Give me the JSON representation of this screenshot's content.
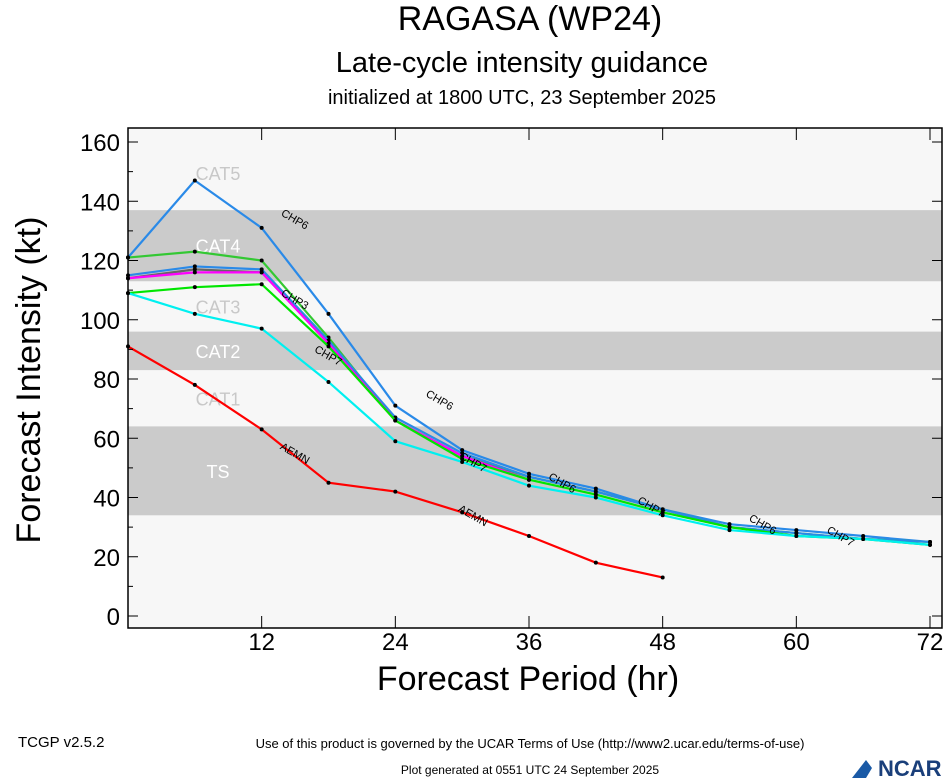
{
  "chart_data": {
    "type": "line",
    "title": "RAGASA (WP24)",
    "subtitle": "Late-cycle intensity guidance",
    "subtitle2": "initialized at 1800 UTC, 23 September 2025",
    "xlabel": "Forecast Period (hr)",
    "ylabel": "Forecast Intensity (kt)",
    "xlim": [
      0,
      72
    ],
    "ylim": [
      0,
      160
    ],
    "xticks": [
      12,
      24,
      36,
      48,
      60,
      72
    ],
    "yticks": [
      0,
      20,
      40,
      60,
      80,
      100,
      120,
      140,
      160
    ],
    "bands": [
      {
        "label": "TS",
        "from": 34,
        "to": 64,
        "shaded": true
      },
      {
        "label": "CAT1",
        "from": 64,
        "to": 83,
        "shaded": false
      },
      {
        "label": "CAT2",
        "from": 83,
        "to": 96,
        "shaded": true
      },
      {
        "label": "CAT3",
        "from": 96,
        "to": 113,
        "shaded": false
      },
      {
        "label": "CAT4",
        "from": 113,
        "to": 137,
        "shaded": true
      },
      {
        "label": "CAT5",
        "from": 137,
        "to": 160,
        "shaded": false
      }
    ],
    "series": [
      {
        "name": "CHP6",
        "color": "#2a8ae8",
        "x": [
          0,
          6,
          12,
          18,
          24,
          30,
          36,
          42,
          48,
          54,
          60,
          66,
          72
        ],
        "y": [
          121,
          147,
          131,
          102,
          71,
          56,
          48,
          43,
          36,
          31,
          29,
          27,
          25
        ]
      },
      {
        "name": "",
        "color": "#33c833",
        "x": [
          0,
          6,
          12,
          18,
          24,
          30,
          36,
          42,
          48,
          54,
          60,
          66,
          72
        ],
        "y": [
          121,
          123,
          120,
          94,
          66,
          54,
          47,
          42,
          36,
          30,
          28,
          26,
          25
        ]
      },
      {
        "name": "",
        "color": "#2a8ae8",
        "x": [
          0,
          6,
          12,
          18,
          24,
          30,
          36,
          42,
          48,
          54,
          60,
          66,
          72
        ],
        "y": [
          115,
          118,
          117,
          93,
          67,
          55,
          47,
          42,
          36,
          30,
          28,
          26,
          25
        ]
      },
      {
        "name": "",
        "color": "#666666",
        "x": [
          0,
          6,
          12,
          18,
          24,
          30,
          36
        ],
        "y": [
          114,
          117,
          116,
          92,
          66,
          54,
          46
        ]
      },
      {
        "name": "",
        "color": "#ff00ff",
        "x": [
          0,
          6,
          12,
          18,
          24,
          30,
          36
        ],
        "y": [
          114,
          116,
          116,
          92,
          66,
          54,
          46
        ]
      },
      {
        "name": "CHP3",
        "color": "#00e600",
        "x": [
          0,
          6,
          12,
          18,
          24,
          30,
          36,
          42,
          48,
          54,
          60,
          66,
          72
        ],
        "y": [
          109,
          111,
          112,
          91,
          66,
          53,
          46,
          41,
          35,
          30,
          27,
          26,
          24
        ]
      },
      {
        "name": "CHP7",
        "color": "#00f0f0",
        "x": [
          0,
          6,
          12,
          18,
          24,
          30,
          36,
          42,
          48,
          54,
          60,
          66,
          72
        ],
        "y": [
          109,
          102,
          97,
          79,
          59,
          52,
          44,
          40,
          34,
          29,
          27,
          26,
          24
        ]
      },
      {
        "name": "AEMN",
        "color": "#ff0000",
        "x": [
          0,
          6,
          12,
          18,
          24,
          30,
          36,
          42,
          48
        ],
        "y": [
          91,
          78,
          63,
          45,
          42,
          35,
          27,
          18,
          13
        ]
      }
    ]
  },
  "footer": {
    "version": "TCGP v2.5.2",
    "terms": "Use of this product is governed by the UCAR Terms of Use (http://www2.ucar.edu/terms-of-use)",
    "generated": "Plot generated at 0551 UTC   24 September 2025",
    "logo": "NCAR"
  }
}
